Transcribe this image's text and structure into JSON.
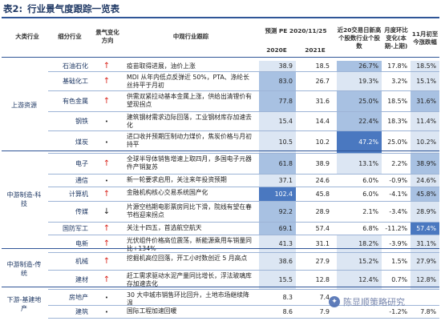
{
  "title": {
    "label": "表2:",
    "text": "行业景气度跟踪一览表"
  },
  "headers": {
    "sector": "大类行业",
    "subsector": "细分行业",
    "trend": "景气变化方向",
    "tracking": "中观行业跟踪",
    "pe_group": "预测 PE 2020/11/25",
    "pe2020": "2020E",
    "pe2021": "2021E",
    "ratio": "近20交易日新高个股数行业个股数",
    "mom": "月度环比变化(本期-上期)",
    "nov": "11月初至今涨跌幅"
  },
  "sectors": [
    {
      "name": "上游资源"
    },
    {
      "name": "中游制造-科技"
    },
    {
      "name": "中游制造-传统"
    },
    {
      "name": "下游-基建地产"
    }
  ],
  "rows": [
    {
      "sub": "石油石化",
      "trend": "up",
      "text": "疫苗取得进展，油价上涨",
      "pe2020": "38.9",
      "pe2021": "18.5",
      "ratio": "26.7%",
      "mom": "17.8%",
      "nov": "18.5%"
    },
    {
      "sub": "基础化工",
      "trend": "up",
      "text": "MDI 从年内低点反弹近 50%，PTA、涤纶长丝持平于月初",
      "pe2020": "83.0",
      "pe2021": "26.7",
      "ratio": "19.3%",
      "mom": "3.2%",
      "nov": "15.1%"
    },
    {
      "sub": "有色金属",
      "trend": "up",
      "text": "供需双紧拉动基本金属上涨，供给出清锂价有望现拐点",
      "pe2020": "77.8",
      "pe2021": "31.6",
      "ratio": "25.0%",
      "mom": "18.5%",
      "nov": "31.6%"
    },
    {
      "sub": "钢铁",
      "trend": "dot",
      "text": "建筑钢材需求边际回落，工业钢材库存加速去化",
      "pe2020": "15.4",
      "pe2021": "14.4",
      "ratio": "22.4%",
      "mom": "18.3%",
      "nov": "11.4%"
    },
    {
      "sub": "煤炭",
      "trend": "dot",
      "text": "进口收并预期压制动力煤价，焦炭价格与月初持平",
      "pe2020": "10.5",
      "pe2021": "10.2",
      "ratio": "47.2%",
      "mom": "25.0%",
      "nov": "10.2%"
    },
    {
      "sub": "电子",
      "trend": "up",
      "text": "全球半导体销售增速上取四月，多国电子元器件产销复苏",
      "pe2020": "61.8",
      "pe2021": "38.9",
      "ratio": "13.1%",
      "mom": "2.2%",
      "nov": "38.9%"
    },
    {
      "sub": "通信",
      "trend": "dot",
      "text": "新一轮要求启用，关注来年投资预期",
      "pe2020": "37.1",
      "pe2021": "24.6",
      "ratio": "6.0%",
      "mom": "-0.9%",
      "nov": "24.6%"
    },
    {
      "sub": "计算机",
      "trend": "up",
      "text": "金融机构核心交易系统国产化",
      "pe2020": "102.4",
      "pe2021": "45.8",
      "ratio": "6.0%",
      "mom": "-4.1%",
      "nov": "45.8%"
    },
    {
      "sub": "传媒",
      "trend": "down",
      "text": "片源空档期电影票房同比下滑，院线有望在春节档迎来拐点",
      "pe2020": "92.2",
      "pe2021": "28.9",
      "ratio": "2.1%",
      "mom": "-3.4%",
      "nov": "28.9%"
    },
    {
      "sub": "国防军工",
      "trend": "up",
      "text": "关注十四五，首选航空航天",
      "pe2020": "69.1",
      "pe2021": "57.4",
      "ratio": "6.8%",
      "mom": "-11.2%",
      "nov": "57.4%"
    },
    {
      "sub": "电新",
      "trend": "up",
      "text": "光伏组件价格高位震荡，新能源乘用车销量同比+134%",
      "pe2020": "41.3",
      "pe2021": "31.1",
      "ratio": "18.2%",
      "mom": "-3.9%",
      "nov": "31.1%"
    },
    {
      "sub": "机械",
      "trend": "up",
      "text": "挖掘机高位回落，开工小时数创近 5 月高点",
      "pe2020": "38.6",
      "pe2021": "27.9",
      "ratio": "15.2%",
      "mom": "1.5%",
      "nov": "27.9%"
    },
    {
      "sub": "建材",
      "trend": "up",
      "text": "赶工需求驱动水泥产量同比增长，浮法玻璃库存加速去化",
      "pe2020": "15.5",
      "pe2021": "12.8",
      "ratio": "12.4%",
      "mom": "0.7%",
      "nov": "12.8%"
    },
    {
      "sub": "房地产",
      "trend": "dot",
      "text": "30 大中城市销售环比回升，土地市场继续降温",
      "pe2020": "8.3",
      "pe2021": "7.4",
      "ratio": "",
      "mom": "",
      "nov": ""
    },
    {
      "sub": "建筑",
      "trend": "dot",
      "text": "国际工程加速回暖",
      "pe2020": "8.6",
      "pe2021": "7.9",
      "ratio": "",
      "mom": "-1.2%",
      "nov": "7.8%"
    }
  ],
  "watermark": "陈显顺策略研究",
  "colors": {
    "pe_light": "#dce6f3",
    "pe_mid": "#a8c1e2",
    "pe_dark": "#4a78c0",
    "header_line": "#2f5597",
    "arrow_up": "#d9251d"
  }
}
